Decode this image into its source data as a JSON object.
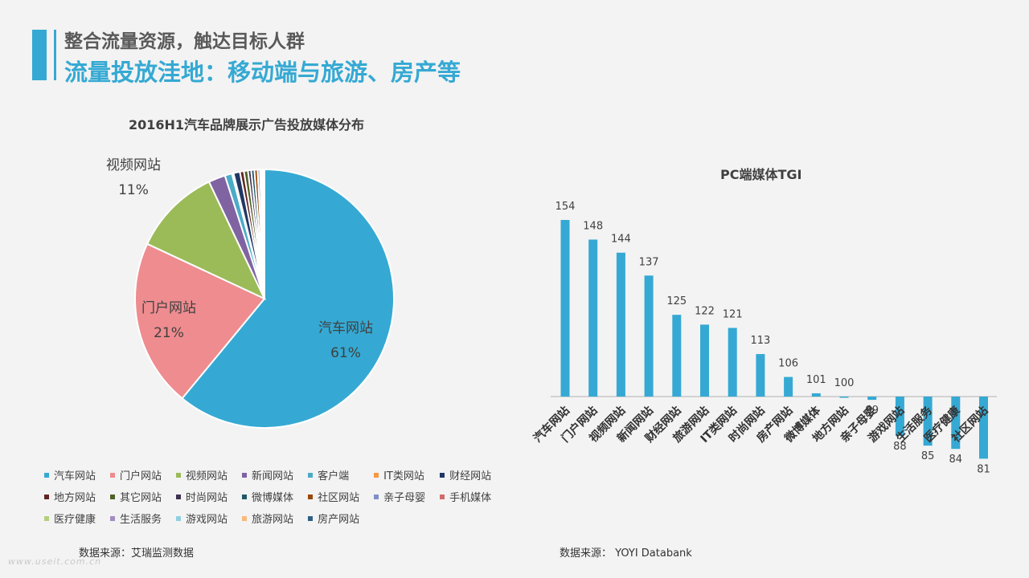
{
  "header": {
    "subtitle": "整合流量资源，触达目标人群",
    "title": "流量投放洼地：移动端与旅游、房产等"
  },
  "watermark": "www.useit.com.cn",
  "sources": {
    "left": "数据来源：艾瑞监测数据",
    "right": "数据来源： YOYI  Databank"
  },
  "chart_data": [
    {
      "type": "pie",
      "title": "2016H1汽车品牌展示广告投放媒体分布",
      "slices": [
        {
          "name": "汽车网站",
          "value": 61,
          "color": "#35a9d3",
          "label": "汽车网站",
          "pct": "61%"
        },
        {
          "name": "门户网站",
          "value": 21,
          "color": "#ee8c8f",
          "label": "门户网站",
          "pct": "21%"
        },
        {
          "name": "视频网站",
          "value": 11,
          "color": "#9bbb59",
          "label": "视频网站",
          "pct": "11%"
        },
        {
          "name": "新闻网站",
          "value": 2.1,
          "color": "#8064a2"
        },
        {
          "name": "客户端",
          "value": 0.9,
          "color": "#4bacc6"
        },
        {
          "name": "IT类网站",
          "value": 0.2,
          "color": "#f79646"
        },
        {
          "name": "财经网站",
          "value": 0.8,
          "color": "#1f3864"
        },
        {
          "name": "地方网站",
          "value": 0.5,
          "color": "#632523"
        },
        {
          "name": "其它网站",
          "value": 0.5,
          "color": "#4f6228"
        },
        {
          "name": "时尚网站",
          "value": 0.4,
          "color": "#3f3151"
        },
        {
          "name": "微博媒体",
          "value": 0.4,
          "color": "#215968"
        },
        {
          "name": "社区网站",
          "value": 0.4,
          "color": "#984807"
        },
        {
          "name": "亲子母婴",
          "value": 0.3,
          "color": "#7f8fc8"
        },
        {
          "name": "手机媒体",
          "value": 0.2,
          "color": "#d16b6b"
        },
        {
          "name": "医疗健康",
          "value": 0.1,
          "color": "#b3cf7c"
        },
        {
          "name": "生活服务",
          "value": 0.1,
          "color": "#a28bc1"
        },
        {
          "name": "游戏网站",
          "value": 0.05,
          "color": "#8fd0e0"
        },
        {
          "name": "旅游网站",
          "value": 0.05,
          "color": "#f9b97a"
        },
        {
          "name": "房产网站",
          "value": 0.05,
          "color": "#2e5f84"
        }
      ],
      "legend": [
        {
          "name": "汽车网站",
          "color": "#35a9d3"
        },
        {
          "name": "门户网站",
          "color": "#ee8c8f"
        },
        {
          "name": "视频网站",
          "color": "#9bbb59"
        },
        {
          "name": "新闻网站",
          "color": "#8064a2"
        },
        {
          "name": "客户端",
          "color": "#4bacc6"
        },
        {
          "name": "IT类网站",
          "color": "#f79646"
        },
        {
          "name": "财经网站",
          "color": "#1f3864"
        },
        {
          "name": "地方网站",
          "color": "#632523"
        },
        {
          "name": "其它网站",
          "color": "#4f6228"
        },
        {
          "name": "时尚网站",
          "color": "#3f3151"
        },
        {
          "name": "微博媒体",
          "color": "#215968"
        },
        {
          "name": "社区网站",
          "color": "#984807"
        },
        {
          "name": "亲子母婴",
          "color": "#7f8fc8"
        },
        {
          "name": "手机媒体",
          "color": "#d16b6b"
        },
        {
          "name": "医疗健康",
          "color": "#b3cf7c"
        },
        {
          "name": "生活服务",
          "color": "#a28bc1"
        },
        {
          "name": "游戏网站",
          "color": "#8fd0e0"
        },
        {
          "name": "旅游网站",
          "color": "#f9b97a"
        },
        {
          "name": "房产网站",
          "color": "#2e5f84"
        }
      ]
    },
    {
      "type": "bar",
      "title": "PC端媒体TGI",
      "baseline": 100,
      "color": "#35a9d3",
      "categories": [
        "汽车网站",
        "门户网站",
        "视频网站",
        "新闻网站",
        "财经网站",
        "旅游网站",
        "IT类网站",
        "时尚网站",
        "房产网站",
        "微博媒体",
        "地方网站",
        "亲子母婴",
        "游戏网站",
        "生活服务",
        "医疗健康",
        "社区网站"
      ],
      "values": [
        154,
        148,
        144,
        137,
        125,
        122,
        121,
        113,
        106,
        101,
        100,
        99,
        88,
        85,
        84,
        81
      ],
      "ylim": [
        81,
        154
      ]
    }
  ]
}
